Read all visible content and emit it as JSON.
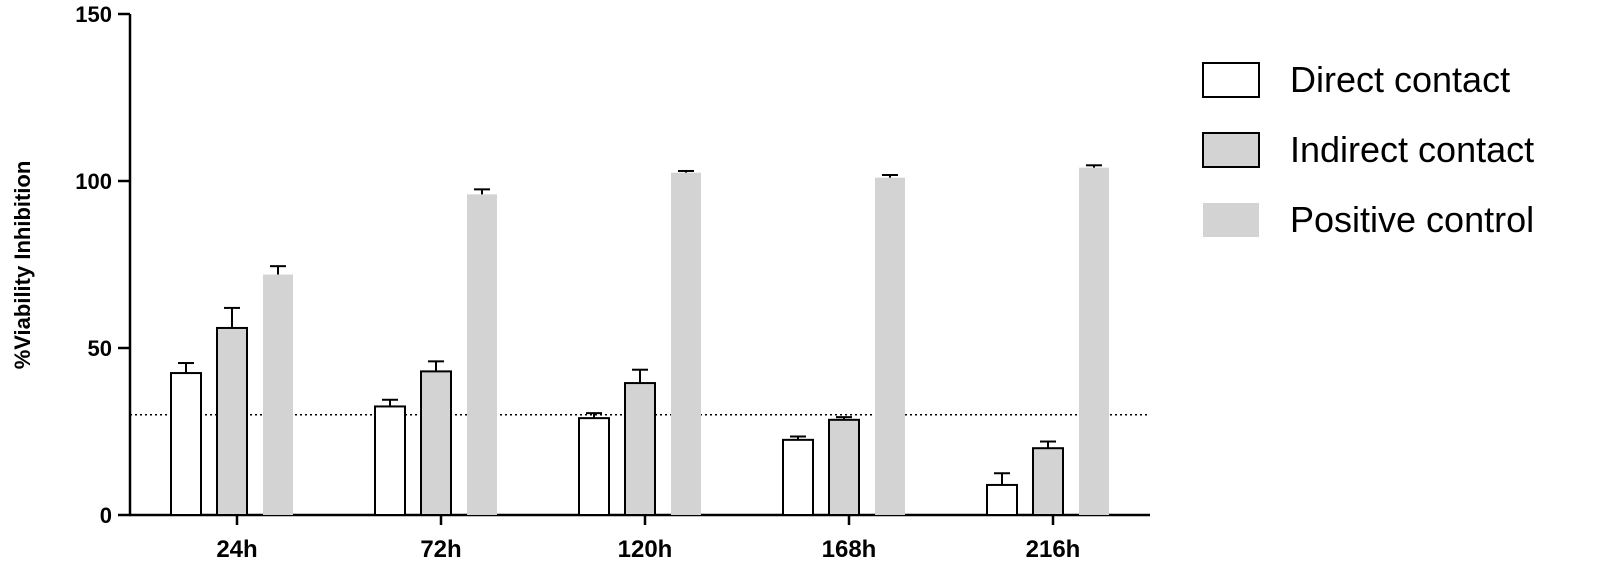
{
  "chart_data": {
    "type": "bar",
    "title": "",
    "xlabel": "",
    "ylabel": "%Viability Inhibition",
    "ylim": [
      0,
      150
    ],
    "yticks": [
      0,
      50,
      100,
      150
    ],
    "categories": [
      "24h",
      "72h",
      "120h",
      "168h",
      "216h"
    ],
    "series": [
      {
        "name": "Direct contact",
        "values": [
          42.5,
          32.5,
          29,
          22.5,
          9
        ],
        "errors": [
          3,
          2,
          1.5,
          1,
          3.5
        ],
        "fill": "#ffffff",
        "stroke": "#000000"
      },
      {
        "name": "Indirect contact",
        "values": [
          56,
          43,
          39.5,
          28.5,
          20
        ],
        "errors": [
          6,
          3,
          4,
          0.8,
          2
        ],
        "fill": "#d3d3d3",
        "stroke": "#000000"
      },
      {
        "name": "Positive control",
        "values": [
          72,
          96,
          102.5,
          101,
          104
        ],
        "errors": [
          2.5,
          1.5,
          0.5,
          0.8,
          0.7
        ],
        "fill": "#d3d3d3",
        "stroke": "none"
      }
    ],
    "reference_line": {
      "y": 30,
      "style": "dotted"
    },
    "legend": "right",
    "grid": false
  }
}
